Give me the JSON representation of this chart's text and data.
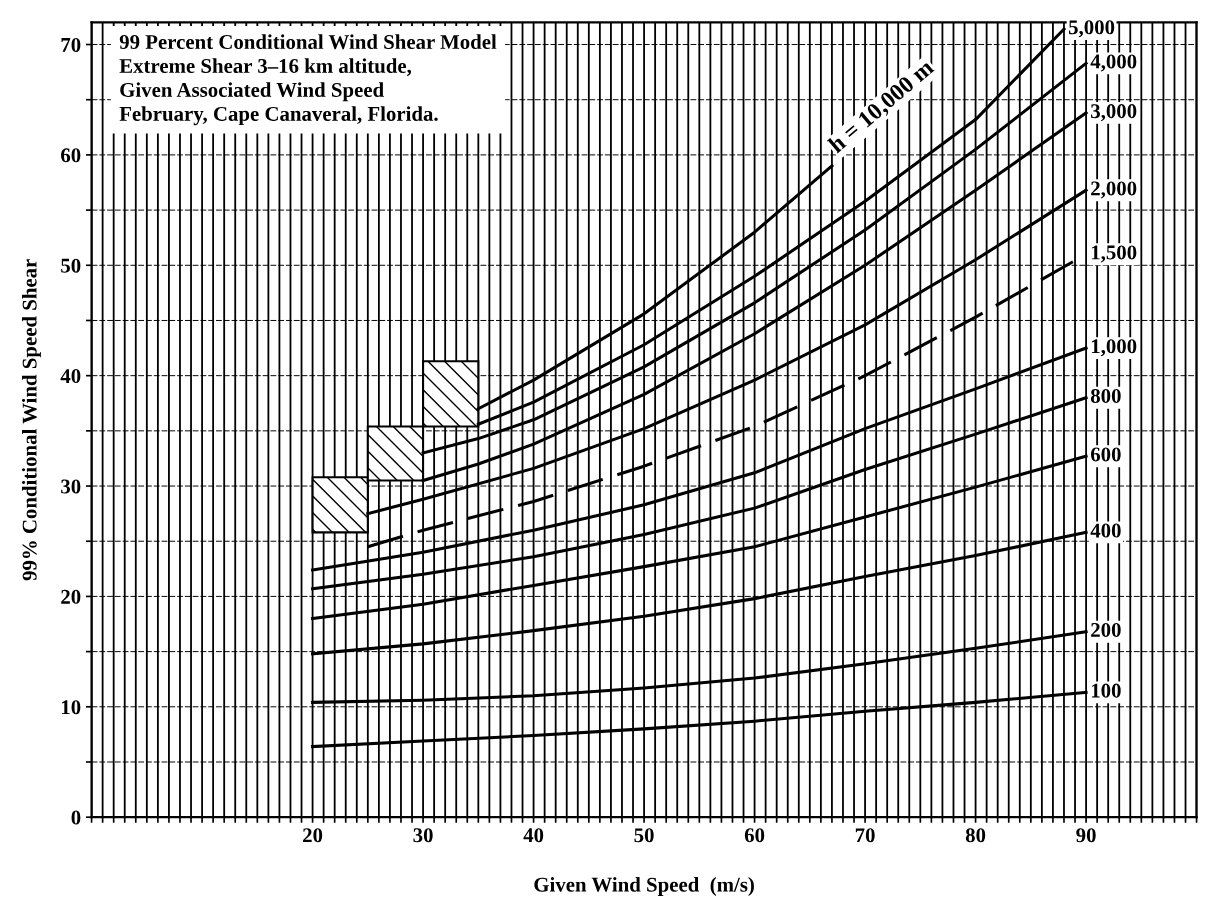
{
  "chart_data": {
    "type": "line",
    "xlabel": "Given Wind Speed  (m/s)",
    "ylabel": "99% Conditional Wind Speed Shear",
    "annotations": [
      "99 Percent Conditional Wind Shear Model",
      "Extreme Shear 3–16 km altitude,",
      "Given Associated Wind Speed",
      "February, Cape Canaveral, Florida."
    ],
    "xlim": [
      0,
      100
    ],
    "ylim": [
      0,
      72
    ],
    "xticks": [
      {
        "value": 0,
        "label": null
      },
      {
        "value": 1,
        "label": null
      },
      {
        "value": 2,
        "label": null
      },
      {
        "value": 3,
        "label": null
      },
      {
        "value": 4,
        "label": null
      },
      {
        "value": 5,
        "label": null
      },
      {
        "value": 6,
        "label": null
      },
      {
        "value": 7,
        "label": null
      },
      {
        "value": 8,
        "label": null
      },
      {
        "value": 9,
        "label": null
      },
      {
        "value": 10,
        "label": null
      },
      {
        "value": 11,
        "label": null
      },
      {
        "value": 12,
        "label": null
      },
      {
        "value": 13,
        "label": null
      },
      {
        "value": 14,
        "label": null
      },
      {
        "value": 15,
        "label": null
      },
      {
        "value": 16,
        "label": null
      },
      {
        "value": 17,
        "label": null
      },
      {
        "value": 18,
        "label": null
      },
      {
        "value": 19,
        "label": null
      },
      20,
      {
        "value": 21,
        "label": null
      },
      {
        "value": 22,
        "label": null
      },
      {
        "value": 23,
        "label": null
      },
      {
        "value": 24,
        "label": null
      },
      {
        "value": 25,
        "label": null
      },
      {
        "value": 26,
        "label": null
      },
      {
        "value": 27,
        "label": null
      },
      {
        "value": 28,
        "label": null
      },
      {
        "value": 29,
        "label": null
      },
      30,
      {
        "value": 31,
        "label": null
      },
      {
        "value": 32,
        "label": null
      },
      {
        "value": 33,
        "label": null
      },
      {
        "value": 34,
        "label": null
      },
      {
        "value": 35,
        "label": null
      },
      {
        "value": 36,
        "label": null
      },
      {
        "value": 37,
        "label": null
      },
      {
        "value": 38,
        "label": null
      },
      {
        "value": 39,
        "label": null
      },
      40,
      {
        "value": 41,
        "label": null
      },
      {
        "value": 42,
        "label": null
      },
      {
        "value": 43,
        "label": null
      },
      {
        "value": 44,
        "label": null
      },
      {
        "value": 45,
        "label": null
      },
      {
        "value": 46,
        "label": null
      },
      {
        "value": 47,
        "label": null
      },
      {
        "value": 48,
        "label": null
      },
      {
        "value": 49,
        "label": null
      },
      50,
      {
        "value": 51,
        "label": null
      },
      {
        "value": 52,
        "label": null
      },
      {
        "value": 53,
        "label": null
      },
      {
        "value": 54,
        "label": null
      },
      {
        "value": 55,
        "label": null
      },
      {
        "value": 56,
        "label": null
      },
      {
        "value": 57,
        "label": null
      },
      {
        "value": 58,
        "label": null
      },
      {
        "value": 59,
        "label": null
      },
      60,
      {
        "value": 61,
        "label": null
      },
      {
        "value": 62,
        "label": null
      },
      {
        "value": 63,
        "label": null
      },
      {
        "value": 64,
        "label": null
      },
      {
        "value": 65,
        "label": null
      },
      {
        "value": 66,
        "label": null
      },
      {
        "value": 67,
        "label": null
      },
      {
        "value": 68,
        "label": null
      },
      {
        "value": 69,
        "label": null
      },
      70,
      {
        "value": 71,
        "label": null
      },
      {
        "value": 72,
        "label": null
      },
      {
        "value": 73,
        "label": null
      },
      {
        "value": 74,
        "label": null
      },
      {
        "value": 75,
        "label": null
      },
      {
        "value": 76,
        "label": null
      },
      {
        "value": 77,
        "label": null
      },
      {
        "value": 78,
        "label": null
      },
      {
        "value": 79,
        "label": null
      },
      80,
      {
        "value": 81,
        "label": null
      },
      {
        "value": 82,
        "label": null
      },
      {
        "value": 83,
        "label": null
      },
      {
        "value": 84,
        "label": null
      },
      {
        "value": 85,
        "label": null
      },
      {
        "value": 86,
        "label": null
      },
      {
        "value": 87,
        "label": null
      },
      {
        "value": 88,
        "label": null
      },
      {
        "value": 89,
        "label": null
      },
      90,
      {
        "value": 91,
        "label": null
      },
      {
        "value": 92,
        "label": null
      },
      {
        "value": 93,
        "label": null
      },
      {
        "value": 94,
        "label": null
      },
      {
        "value": 95,
        "label": null
      },
      {
        "value": 96,
        "label": null
      },
      {
        "value": 97,
        "label": null
      },
      {
        "value": 98,
        "label": null
      },
      {
        "value": 99,
        "label": null
      },
      {
        "value": 100,
        "label": null
      }
    ],
    "yticks": [
      0,
      {
        "value": 5,
        "label": null
      },
      10,
      {
        "value": 15,
        "label": null
      },
      20,
      {
        "value": 25,
        "label": null
      },
      30,
      {
        "value": 35,
        "label": null
      },
      40,
      {
        "value": 45,
        "label": null
      },
      50,
      {
        "value": 55,
        "label": null
      },
      60,
      {
        "value": 65,
        "label": null
      },
      70
    ],
    "grid": true,
    "marker": "none",
    "line_style": "solid",
    "series": [
      {
        "name": "100",
        "color": "#000000",
        "x": [
          20,
          30,
          40,
          50,
          60,
          70,
          80,
          90
        ],
        "values": [
          6.4,
          6.9,
          7.4,
          8.0,
          8.7,
          9.6,
          10.4,
          11.3
        ]
      },
      {
        "name": "200",
        "color": "#000000",
        "x": [
          20,
          30,
          40,
          50,
          60,
          70,
          80,
          90
        ],
        "values": [
          10.4,
          10.6,
          11.0,
          11.7,
          12.6,
          13.9,
          15.3,
          16.8
        ]
      },
      {
        "name": "400",
        "color": "#000000",
        "x": [
          20,
          30,
          40,
          50,
          60,
          70,
          80,
          90
        ],
        "values": [
          14.8,
          15.7,
          16.9,
          18.2,
          19.8,
          21.8,
          23.7,
          25.8
        ]
      },
      {
        "name": "600",
        "color": "#000000",
        "x": [
          20,
          30,
          40,
          50,
          60,
          70,
          80,
          90
        ],
        "values": [
          18.0,
          19.3,
          21.0,
          22.7,
          24.5,
          27.2,
          29.9,
          32.7
        ]
      },
      {
        "name": "800",
        "color": "#000000",
        "x": [
          20,
          30,
          40,
          50,
          60,
          70,
          80,
          90
        ],
        "values": [
          20.7,
          22.0,
          23.6,
          25.6,
          28.0,
          31.5,
          34.7,
          38.0
        ]
      },
      {
        "name": "1,000",
        "color": "#000000",
        "x": [
          20,
          30,
          40,
          50,
          60,
          70,
          80,
          90
        ],
        "values": [
          22.4,
          24.0,
          26.0,
          28.3,
          31.2,
          35.2,
          38.8,
          42.5
        ]
      },
      {
        "name": "1,500",
        "color": "#000000",
        "line_style": "dashed",
        "x": [
          25,
          30,
          40,
          50,
          60,
          70,
          80,
          90
        ],
        "values": [
          24.5,
          26.0,
          28.6,
          31.8,
          35.4,
          40.0,
          45.3,
          51.0
        ]
      },
      {
        "name": "2,000",
        "color": "#000000",
        "x": [
          25,
          30,
          40,
          50,
          60,
          70,
          80,
          90
        ],
        "values": [
          27.5,
          28.8,
          31.6,
          35.2,
          39.6,
          44.6,
          50.5,
          56.8
        ]
      },
      {
        "name": "3,000",
        "color": "#000000",
        "x": [
          30,
          35,
          40,
          50,
          60,
          70,
          80,
          90
        ],
        "values": [
          30.5,
          32.0,
          33.8,
          38.3,
          43.8,
          50.0,
          56.8,
          63.8
        ]
      },
      {
        "name": "4,000",
        "color": "#000000",
        "x": [
          30,
          35,
          40,
          50,
          60,
          70,
          80,
          90
        ],
        "values": [
          33.0,
          34.3,
          36.0,
          40.8,
          46.6,
          53.2,
          60.5,
          68.3
        ]
      },
      {
        "name": "5,000",
        "color": "#000000",
        "x": [
          35,
          40,
          50,
          60,
          70,
          80,
          88
        ],
        "values": [
          35.6,
          37.6,
          42.8,
          49.0,
          55.8,
          63.2,
          71.4
        ]
      },
      {
        "name": "h = 10,000 m",
        "color": "#000000",
        "x": [
          35,
          40,
          50,
          60,
          67
        ],
        "values": [
          37.0,
          39.6,
          45.6,
          53.0,
          59.0
        ]
      },
      {
        "type": "bar",
        "color": "#000000",
        "x": [
          22.5,
          27.5,
          32.5
        ],
        "base": [
          25.8,
          30.5,
          35.4
        ],
        "values": [
          5.0,
          4.9,
          5.9
        ]
      }
    ]
  }
}
